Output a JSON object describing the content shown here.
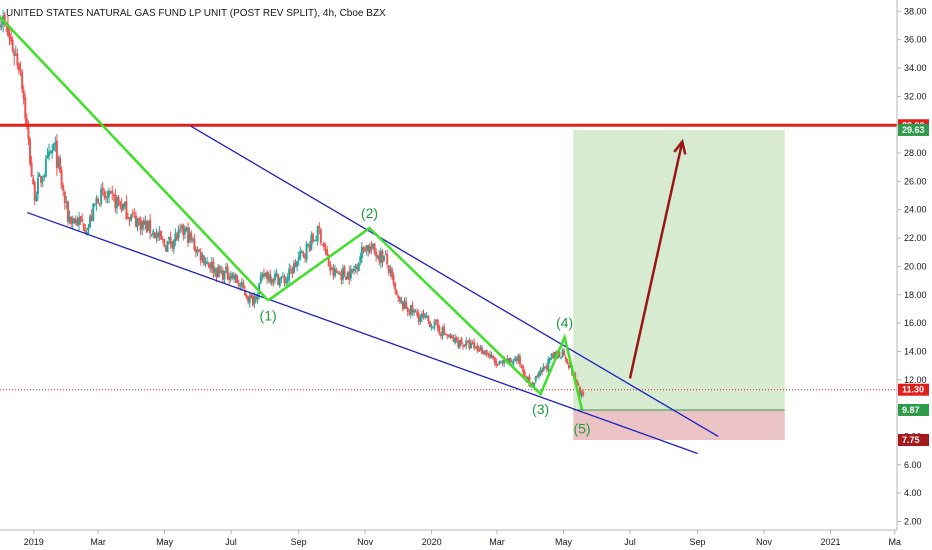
{
  "header": {
    "title": "UNITED STATES NATURAL GAS FUND LP UNIT (POST REV SPLIT), 4h, Cboe BZX"
  },
  "chart_data": {
    "type": "line",
    "title": "UNITED STATES NATURAL GAS FUND LP UNIT (POST REV SPLIT), 4h, Cboe BZX",
    "ylim": [
      1.4,
      38.8
    ],
    "y_ticks": [
      "38.00",
      "36.00",
      "34.00",
      "32.00",
      "30.00",
      "28.00",
      "26.00",
      "24.00",
      "22.00",
      "20.00",
      "18.00",
      "16.00",
      "14.00",
      "12.00",
      "10.00",
      "8.00",
      "6.00",
      "4.00",
      "2.00"
    ],
    "x_ticks": [
      "2019",
      "Mar",
      "May",
      "Jul",
      "Sep",
      "Nov",
      "2020",
      "Mar",
      "May",
      "Jul",
      "Sep",
      "Nov",
      "2021",
      "Ma"
    ],
    "price_series": {
      "name": "",
      "x": [
        "2018-12-01",
        "2018-12-20",
        "2019-01-01",
        "2019-01-20",
        "2019-02-01",
        "2019-02-20",
        "2019-03-01",
        "2019-03-20",
        "2019-04-01",
        "2019-04-20",
        "2019-05-01",
        "2019-05-20",
        "2019-06-01",
        "2019-06-20",
        "2019-07-01",
        "2019-07-20",
        "2019-08-01",
        "2019-08-20",
        "2019-09-01",
        "2019-09-20",
        "2019-10-01",
        "2019-10-20",
        "2019-11-01",
        "2019-11-20",
        "2019-12-01",
        "2019-12-20",
        "2020-01-01",
        "2020-01-20",
        "2020-02-01",
        "2020-02-20",
        "2020-03-01",
        "2020-03-20",
        "2020-04-01",
        "2020-04-20",
        "2020-05-01",
        "2020-05-20"
      ],
      "y": [
        37.8,
        34.0,
        25.0,
        28.5,
        23.5,
        22.8,
        25.0,
        24.5,
        23.5,
        22.5,
        21.5,
        22.5,
        21.0,
        19.5,
        19.5,
        17.5,
        19.5,
        19.0,
        20.5,
        22.5,
        19.5,
        19.5,
        21.5,
        20.5,
        17.5,
        16.5,
        16.0,
        14.8,
        14.5,
        14.0,
        13.0,
        13.5,
        11.5,
        13.5,
        14.0,
        10.5
      ]
    },
    "lines": {
      "upper_channel": {
        "start": {
          "x": "2019-05-25",
          "y": 29.9
        },
        "end": {
          "x": "2020-09-20",
          "y": 8.0
        }
      },
      "lower_channel": {
        "start": {
          "x": "2018-12-26",
          "y": 23.8
        },
        "end": {
          "x": "2020-09-01",
          "y": 6.8
        }
      },
      "descending_trend": {
        "start": {
          "x": "2018-12-01",
          "y": 37.6
        },
        "end": {
          "x": "2019-08-04",
          "y": 17.6
        }
      },
      "resistance": {
        "y": 29.96
      },
      "current_price": {
        "y": 11.3
      },
      "entry": {
        "y": 9.87
      }
    },
    "wave_path": [
      {
        "x": "2019-08-04",
        "y": 17.6,
        "label": "(1)"
      },
      {
        "x": "2019-11-05",
        "y": 22.7,
        "label": "(2)"
      },
      {
        "x": "2020-04-10",
        "y": 11.0,
        "label": "(3)"
      },
      {
        "x": "2020-05-02",
        "y": 15.0,
        "label": "(4)"
      },
      {
        "x": "2020-05-18",
        "y": 9.9,
        "label": "(5)"
      }
    ],
    "arrow": {
      "start": {
        "x": "2020-07-01",
        "y": 12.1
      },
      "end": {
        "x": "2020-08-18",
        "y": 28.8
      }
    },
    "position": {
      "x_start": "2020-05-10",
      "x_end": "2020-11-20",
      "target": 29.63,
      "entry": 9.87,
      "stop": 7.75
    },
    "price_tags": [
      {
        "value": "29.96",
        "color": "#e0201b"
      },
      {
        "value": "29.63",
        "color": "#2e9b4b"
      },
      {
        "value": "11.30",
        "color": "#e0201b"
      },
      {
        "value": "9.87",
        "color": "#2e9b4b"
      },
      {
        "value": "7.75",
        "color": "#a5181c"
      }
    ],
    "colors": {
      "candle_up": "#26a69a",
      "candle_down": "#ef5350",
      "channel": "#1a1fc4",
      "wave": "#3ee028",
      "wave_label": "#1f9c3a",
      "resistance": "#e0201b",
      "arrow": "#9c1515",
      "profit_zone": "#d6ebd0",
      "loss_zone": "#ecc3c4"
    },
    "grid": false
  }
}
